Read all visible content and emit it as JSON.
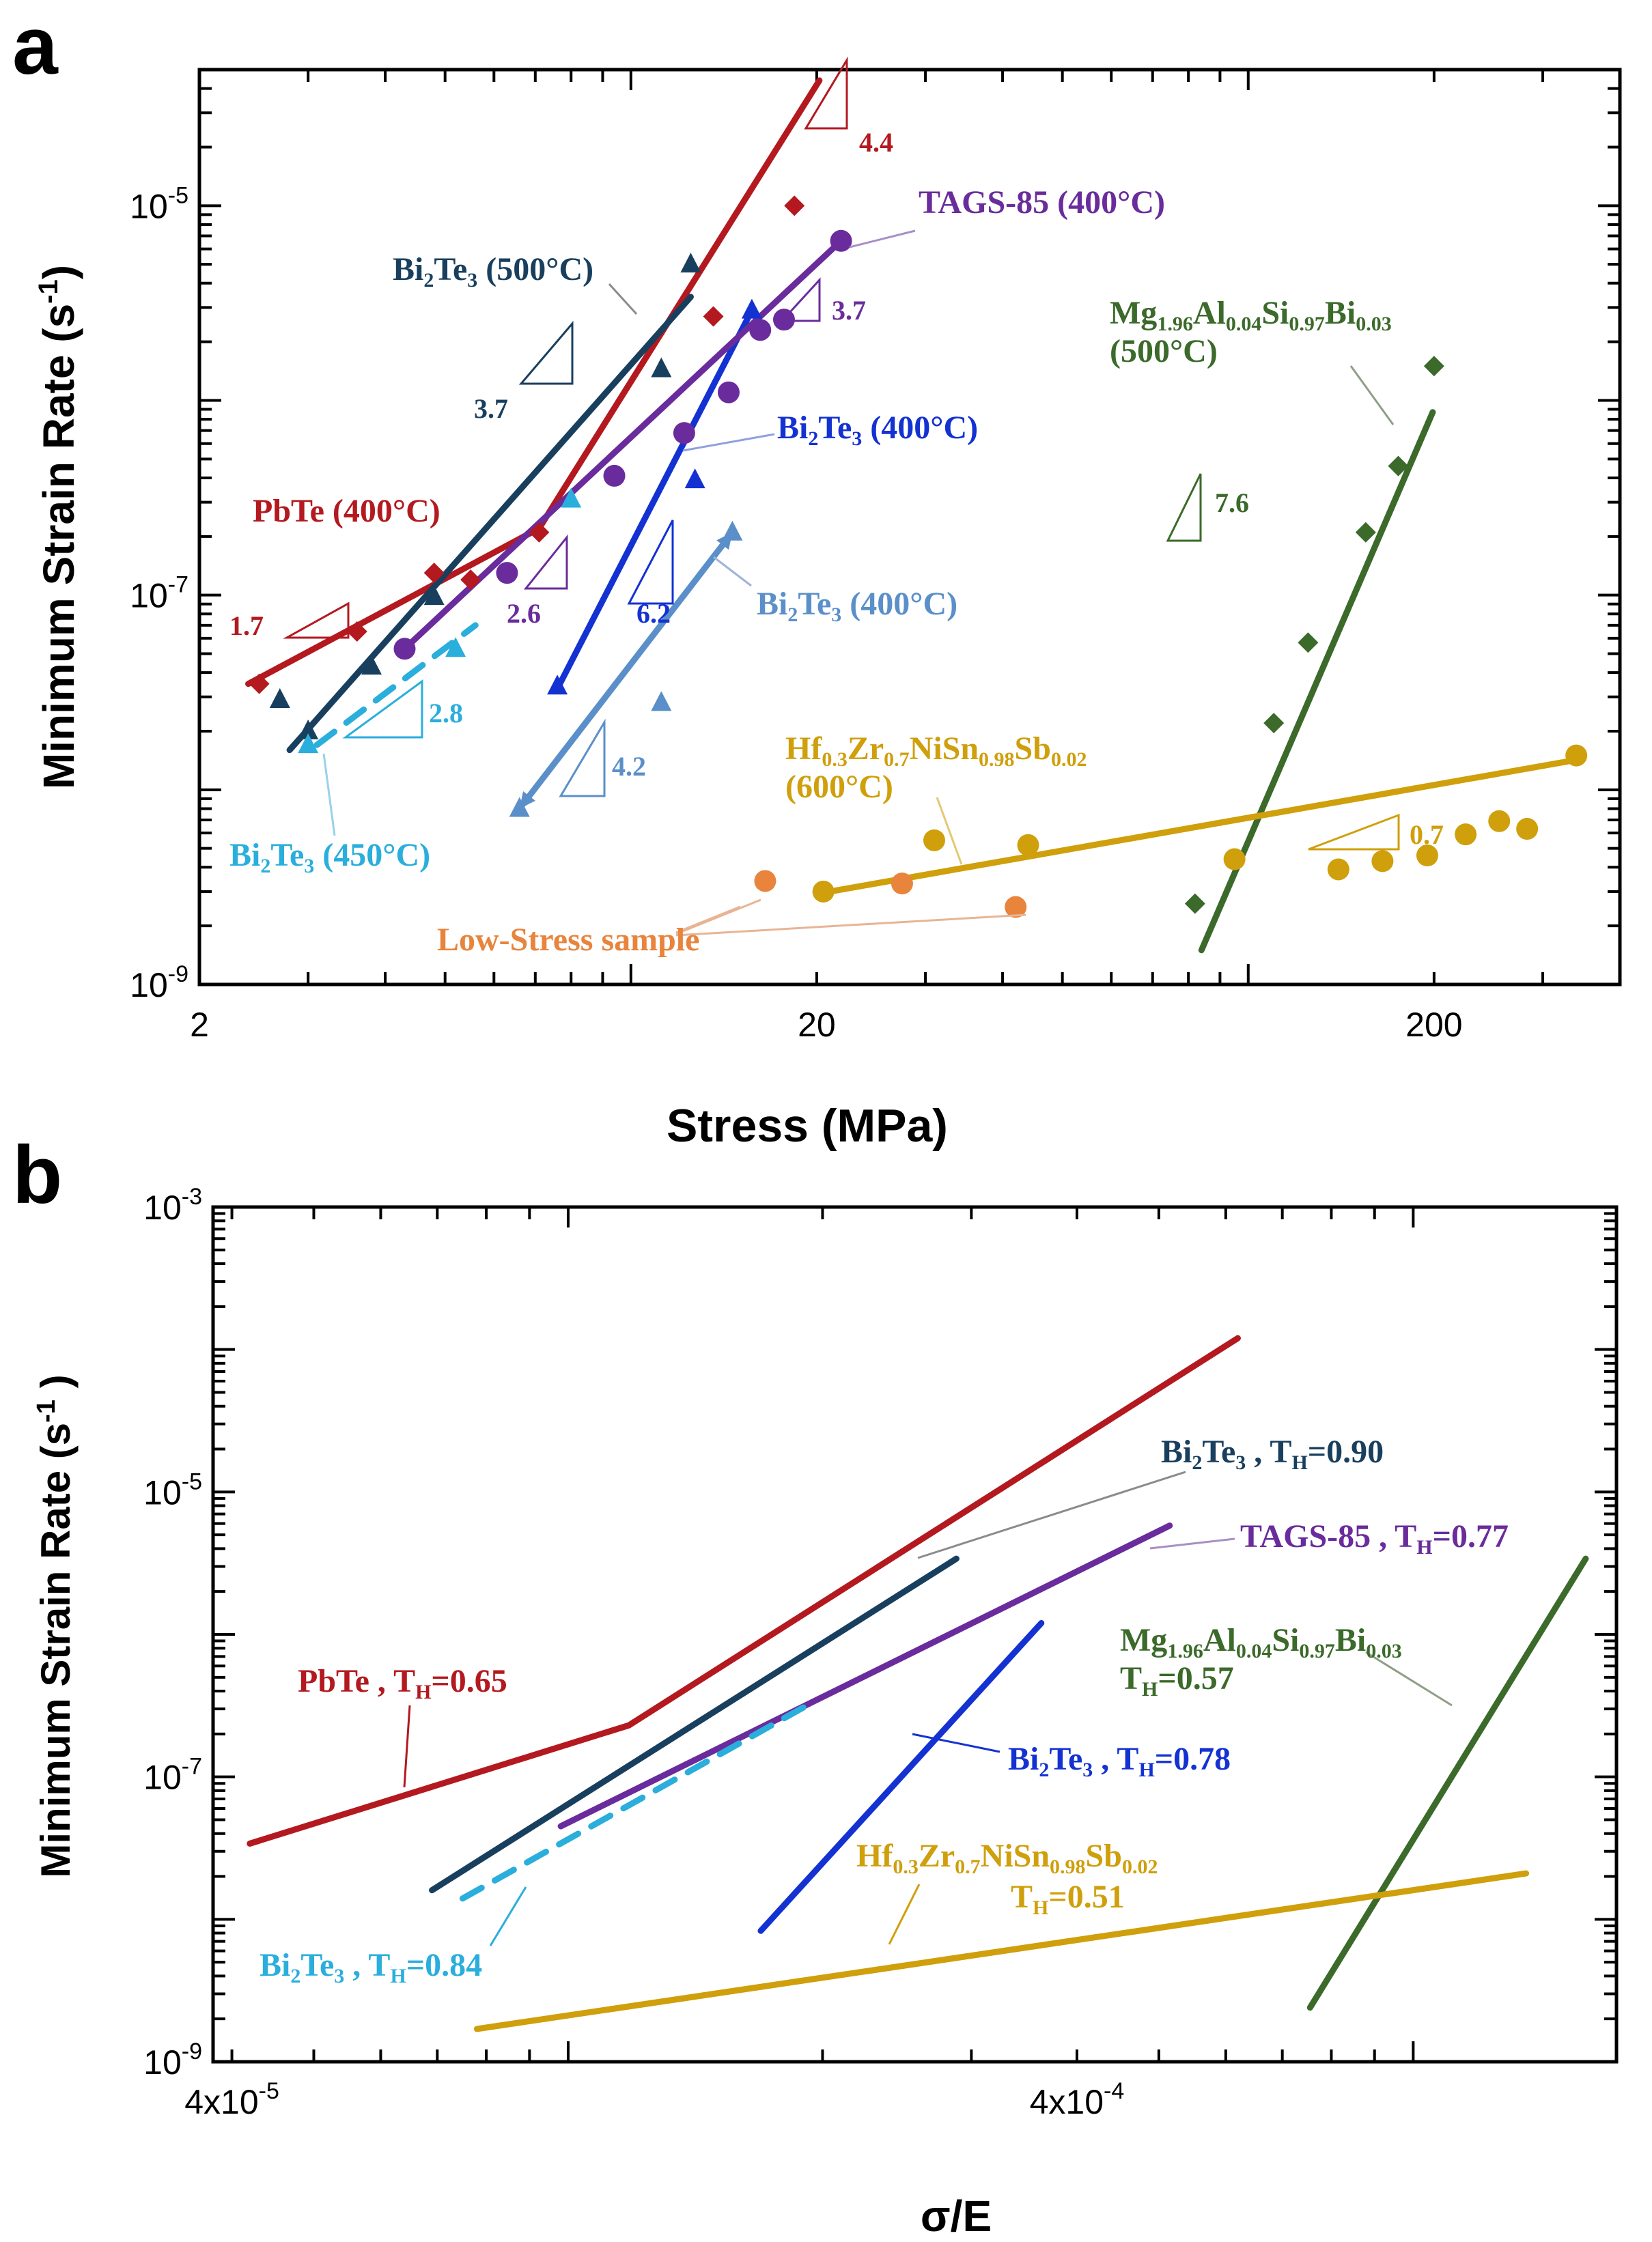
{
  "colors": {
    "PbTe": "#b3191f",
    "Bi2Te3_500": "#193f5e",
    "Bi2Te3_400_blue": "#1432d2",
    "Bi2Te3_400_light": "#5b8fc9",
    "Bi2Te3_450": "#2aaedc",
    "TAGS": "#6a2c9c",
    "Mg": "#3b6a2a",
    "Hf": "#cf9f0c",
    "LowStress": "#e8843c"
  },
  "panel_a": {
    "letter": "a"
  },
  "panel_b": {
    "letter": "b"
  },
  "chart_data": [
    {
      "id": "a",
      "type": "scatter",
      "xscale": "log",
      "yscale": "log",
      "xlabel": "Stress (MPa)",
      "ylabel_main": "Minimum Strain Rate (s",
      "ylabel_sup": "-1",
      "ylabel_end": ")",
      "xlim": [
        2,
        400
      ],
      "ylim": [
        1e-09,
        5e-05
      ],
      "xticks": [
        {
          "v": 2,
          "label": "2"
        },
        {
          "v": 20,
          "label": "20"
        },
        {
          "v": 200,
          "label": "200"
        }
      ],
      "yticks": [
        {
          "v": 1e-09,
          "base": "10",
          "exp": "-9"
        },
        {
          "v": 1e-07,
          "base": "10",
          "exp": "-7"
        },
        {
          "v": 1e-05,
          "base": "10",
          "exp": "-5"
        }
      ],
      "series": [
        {
          "key": "PbTe",
          "name": "PbTe (400°C)",
          "marker": "diamond",
          "color": "PbTe",
          "points": [
            [
              2.5,
              3.5e-08
            ],
            [
              3.6,
              6.5e-08
            ],
            [
              4.8,
              1.3e-07
            ],
            [
              5.5,
              1.2e-07
            ],
            [
              7.1,
              2.1e-07
            ],
            [
              13.6,
              2.7e-06
            ],
            [
              18.4,
              1e-05
            ]
          ],
          "lines": [
            [
              [
                2.4,
                3.5e-08
              ],
              [
                7.1,
                2.2e-07
              ]
            ],
            [
              [
                7.1,
                2.2e-07
              ],
              [
                20.2,
                4.4e-05
              ]
            ]
          ]
        },
        {
          "key": "Bi2Te3_500",
          "name": "Bi2Te3 (500°C)",
          "marker": "triangle",
          "color": "Bi2Te3_500",
          "points": [
            [
              2.7,
              2.9e-08
            ],
            [
              3.0,
              2e-08
            ],
            [
              3.8,
              4.3e-08
            ],
            [
              4.8,
              9.8e-08
            ],
            [
              11.2,
              1.45e-06
            ],
            [
              12.5,
              5e-06
            ]
          ],
          "lines": [
            [
              [
                2.8,
                1.6e-08
              ],
              [
                12.5,
                3.4e-06
              ]
            ]
          ]
        },
        {
          "key": "Bi2Te3_400_blue",
          "name": "Bi2Te3 (400°C)",
          "marker": "triangle",
          "color": "Bi2Te3_400_blue",
          "points": [
            [
              7.6,
              3.4e-08
            ],
            [
              12.7,
              3.9e-07
            ],
            [
              15.7,
              2.9e-06
            ]
          ],
          "lines": [
            [
              [
                7.6,
                3.3e-08
              ],
              [
                15.7,
                2.9e-06
              ]
            ]
          ]
        },
        {
          "key": "Bi2Te3_400_light",
          "name": "Bi2Te3 (400°C)",
          "marker": "triangle",
          "color": "Bi2Te3_400_light",
          "points": [
            [
              6.6,
              8e-09
            ],
            [
              11.2,
              2.8e-08
            ],
            [
              14.6,
              2.1e-07
            ]
          ],
          "lines": [
            [
              [
                6.6,
                8e-09
              ],
              [
                14.6,
                2.1e-07
              ]
            ]
          ]
        },
        {
          "key": "Bi2Te3_450",
          "name": "Bi2Te3 (450°C)",
          "marker": "triangle",
          "color": "Bi2Te3_450",
          "points": [
            [
              3.0,
              1.7e-08
            ],
            [
              5.2,
              5.3e-08
            ],
            [
              8.0,
              3.1e-07
            ]
          ],
          "lines": [
            [
              [
                3.1,
                1.7e-08
              ],
              [
                5.6,
                7e-08
              ]
            ]
          ],
          "dashed": true
        },
        {
          "key": "TAGS",
          "name": "TAGS-85 (400°C)",
          "marker": "circle",
          "color": "TAGS",
          "points": [
            [
              4.3,
              5.3e-08
            ],
            [
              6.3,
              1.3e-07
            ],
            [
              9.4,
              4.1e-07
            ],
            [
              12.2,
              6.8e-07
            ],
            [
              14.4,
              1.1e-06
            ],
            [
              16.2,
              2.3e-06
            ],
            [
              17.7,
              2.6e-06
            ],
            [
              21.9,
              6.6e-06
            ]
          ],
          "lines": [
            [
              [
                4.3,
                5.3e-08
              ],
              [
                21.9,
                6.6e-06
              ]
            ]
          ]
        },
        {
          "key": "Mg",
          "name": "Mg1.96Al0.04Si0.97Bi0.03 (500°C)",
          "marker": "diamond",
          "color": "Mg",
          "points": [
            [
              82,
              2.6e-09
            ],
            [
              110,
              2.2e-08
            ],
            [
              125,
              5.7e-08
            ],
            [
              155,
              2.1e-07
            ],
            [
              175,
              4.6e-07
            ],
            [
              200,
              1.5e-06
            ]
          ],
          "lines": [
            [
              [
                84,
                1.5e-09
              ],
              [
                199,
                8.7e-07
              ]
            ]
          ]
        },
        {
          "key": "Hf",
          "name": "Hf0.3Zr0.7NiSn0.98Sb0.02 (600°C)",
          "marker": "circle",
          "color": "Hf",
          "points": [
            [
              20.5,
              3e-09
            ],
            [
              31,
              5.5e-09
            ],
            [
              44,
              5.2e-09
            ],
            [
              95,
              4.4e-09
            ],
            [
              140,
              3.9e-09
            ],
            [
              165,
              4.3e-09
            ],
            [
              195,
              4.6e-09
            ],
            [
              225,
              5.9e-09
            ],
            [
              255,
              6.9e-09
            ],
            [
              283,
              6.3e-09
            ],
            [
              340,
              1.5e-08
            ]
          ],
          "lines": [
            [
              [
                21,
                3e-09
              ],
              [
                330,
                1.4e-08
              ]
            ]
          ]
        },
        {
          "key": "LowStress",
          "name": "Low-Stress sample",
          "marker": "circle",
          "color": "LowStress",
          "points": [
            [
              16.5,
              3.4e-09
            ],
            [
              27.5,
              3.3e-09
            ],
            [
              42,
              2.5e-09
            ]
          ]
        }
      ],
      "slopes": [
        {
          "value": "4.4",
          "color": "PbTe"
        },
        {
          "value": "3.7",
          "color": "TAGS"
        },
        {
          "value": "3.7",
          "color": "Bi2Te3_500"
        },
        {
          "value": "1.7",
          "color": "PbTe"
        },
        {
          "value": "2.6",
          "color": "TAGS"
        },
        {
          "value": "6.2",
          "color": "Bi2Te3_400_blue"
        },
        {
          "value": "2.8",
          "color": "Bi2Te3_450"
        },
        {
          "value": "4.2",
          "color": "Bi2Te3_400_light"
        },
        {
          "value": "7.6",
          "color": "Mg"
        },
        {
          "value": "0.7",
          "color": "Hf"
        }
      ],
      "labels": {
        "bi500": {
          "pre": "Bi",
          "s1": "2",
          "mid": "Te",
          "s2": "3",
          "post": " (500°C)"
        },
        "tags": {
          "text": "TAGS-85 (400°C)"
        },
        "bi400b": {
          "pre": "Bi",
          "s1": "2",
          "mid": "Te",
          "s2": "3",
          "post": " (400°C)"
        },
        "pbte": {
          "text": "PbTe (400°C)"
        },
        "bi400l": {
          "pre": "Bi",
          "s1": "2",
          "mid": "Te",
          "s2": "3",
          "post": " (400°C)"
        },
        "bi450": {
          "pre": "Bi",
          "s1": "2",
          "mid": "Te",
          "s2": "3",
          "post": " (450°C)"
        },
        "mg": {
          "a": "Mg",
          "a1": "1.96",
          "b": "Al",
          "b1": "0.04",
          "c": "Si",
          "c1": "0.97",
          "d": "Bi",
          "d1": "0.03",
          "t": "(500°C)"
        },
        "hf": {
          "a": "Hf",
          "a1": "0.3",
          "b": "Zr",
          "b1": "0.7",
          "c": "NiSn",
          "c1": "0.98",
          "d": "Sb",
          "d1": "0.02",
          "t": "(600°C)"
        },
        "low": {
          "text": "Low-Stress sample"
        }
      }
    },
    {
      "id": "b",
      "type": "line",
      "xscale": "log",
      "yscale": "log",
      "xlabel": "σ/E",
      "ylabel_main": "Minimum Strain  Rate  (s",
      "ylabel_sup": "-1",
      "ylabel_end": " )",
      "xlim": [
        3.8e-05,
        0.00174
      ],
      "ylim": [
        1e-09,
        0.001
      ],
      "xticks": [
        {
          "v": 4e-05,
          "base": "4x10",
          "exp": "-5"
        },
        {
          "v": 0.0004,
          "base": "4x10",
          "exp": "-4"
        }
      ],
      "yticks": [
        {
          "v": 1e-09,
          "base": "10",
          "exp": "-9"
        },
        {
          "v": 1e-07,
          "base": "10",
          "exp": "-7"
        },
        {
          "v": 1e-05,
          "base": "10",
          "exp": "-5"
        },
        {
          "v": 0.001,
          "base": "10",
          "exp": "-3"
        }
      ],
      "series": [
        {
          "key": "PbTe",
          "name": "PbTe, TH=0.65",
          "color": "PbTe",
          "points": [
            [
              4.2e-05,
              3.4e-08
            ],
            [
              0.000118,
              2.3e-07
            ],
            [
              0.00062,
              0.00012
            ]
          ]
        },
        {
          "key": "Bi2Te3_500",
          "name": "Bi2Te3, TH=0.90",
          "color": "Bi2Te3_500",
          "points": [
            [
              6.9e-05,
              1.6e-08
            ],
            [
              0.000288,
              3.4e-06
            ]
          ]
        },
        {
          "key": "TAGS",
          "name": "TAGS-85, TH=0.77",
          "color": "TAGS",
          "points": [
            [
              9.8e-05,
              4.5e-08
            ],
            [
              0.000515,
              5.8e-06
            ]
          ]
        },
        {
          "key": "Bi2Te3_400_blue",
          "name": "Bi2Te3, TH=0.78",
          "color": "Bi2Te3_400_blue",
          "points": [
            [
              0.000169,
              8.3e-09
            ],
            [
              0.000363,
              1.2e-06
            ]
          ]
        },
        {
          "key": "Bi2Te3_450",
          "name": "Bi2Te3, TH=0.84",
          "color": "Bi2Te3_450",
          "dashed": true,
          "points": [
            [
              7.5e-05,
              1.4e-08
            ],
            [
              0.000194,
              3.3e-07
            ]
          ]
        },
        {
          "key": "Mg",
          "name": "Mg1.96Al0.04Si0.97Bi0.03, TH=0.57",
          "color": "Mg",
          "points": [
            [
              0.000755,
              2.4e-09
            ],
            [
              0.0016,
              3.4e-06
            ]
          ]
        },
        {
          "key": "Hf",
          "name": "Hf0.3Zr0.7NiSn0.98Sb0.02, TH=0.51",
          "color": "Hf",
          "points": [
            [
              7.8e-05,
              1.7e-09
            ],
            [
              0.00136,
              2.1e-08
            ]
          ]
        }
      ],
      "labels": {
        "pbte": {
          "pre": "PbTe , T",
          "sub": "H",
          "post": "=0.65"
        },
        "bi90": {
          "pre": "Bi",
          "s1": "2",
          "mid": "Te",
          "s2": "3",
          "post": " , T",
          "sub": "H",
          "val": "=0.90"
        },
        "tags": {
          "pre": "TAGS-85 , T",
          "sub": "H",
          "post": "=0.77"
        },
        "mg": {
          "a": "Mg",
          "a1": "1.96",
          "b": "Al",
          "b1": "0.04",
          "c": "Si",
          "c1": "0.97",
          "d": "Bi",
          "d1": "0.03",
          "t": "T",
          "tsub": "H",
          "tval": "=0.57"
        },
        "bi78": {
          "pre": "Bi",
          "s1": "2",
          "mid": "Te",
          "s2": "3",
          "post": " , T",
          "sub": "H",
          "val": "=0.78"
        },
        "hf": {
          "a": "Hf",
          "a1": "0.3",
          "b": "Zr",
          "b1": "0.7",
          "c": "NiSn",
          "c1": "0.98",
          "d": "Sb",
          "d1": "0.02",
          "t": "T",
          "tsub": "H",
          "tval": "=0.51"
        },
        "bi84": {
          "pre": "Bi",
          "s1": "2",
          "mid": "Te",
          "s2": "3",
          "post": " , T",
          "sub": "H",
          "val": "=0.84"
        }
      }
    }
  ]
}
